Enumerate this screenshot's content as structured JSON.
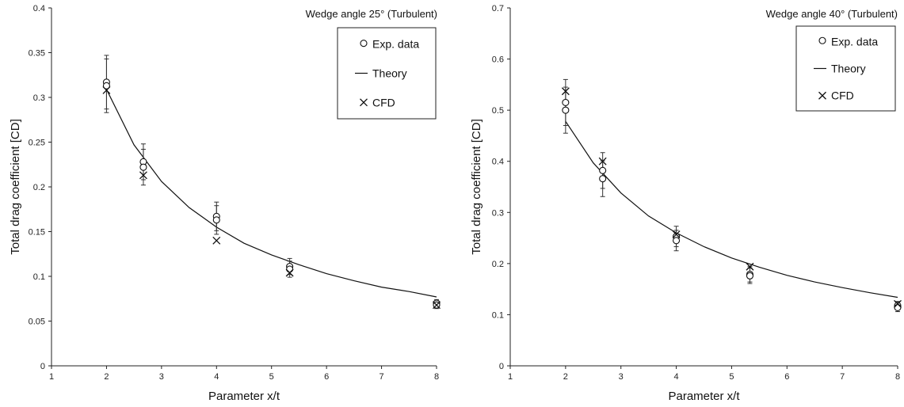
{
  "chart_data": [
    {
      "type": "scatter",
      "annotation": "Wedge angle 25° (Turbulent)",
      "xlabel": "Parameter x/t",
      "ylabel": "Total drag coefficient [CD]",
      "xlim": [
        1,
        8
      ],
      "ylim": [
        0,
        0.4
      ],
      "xticks": [
        "1",
        "2",
        "3",
        "4",
        "5",
        "6",
        "7",
        "8"
      ],
      "yticks": [
        "0",
        "0.05",
        "0.1",
        "0.15",
        "0.2",
        "0.25",
        "0.3",
        "0.35",
        "0.4"
      ],
      "legend": [
        "Exp. data",
        "Theory",
        "CFD"
      ],
      "legend_position": "top-right",
      "grid": false,
      "series": [
        {
          "name": "Exp. data",
          "marker": "circle",
          "points": [
            {
              "x": 2,
              "y": 0.317,
              "err": 0.03
            },
            {
              "x": 2,
              "y": 0.313,
              "err": 0.03
            },
            {
              "x": 2.67,
              "y": 0.228,
              "err": 0.02
            },
            {
              "x": 2.67,
              "y": 0.222,
              "err": 0.02
            },
            {
              "x": 4,
              "y": 0.167,
              "err": 0.016
            },
            {
              "x": 4,
              "y": 0.163,
              "err": 0.016
            },
            {
              "x": 5.33,
              "y": 0.111,
              "err": 0.009
            },
            {
              "x": 5.33,
              "y": 0.108,
              "err": 0.009
            },
            {
              "x": 8,
              "y": 0.07,
              "err": 0.004
            },
            {
              "x": 8,
              "y": 0.068,
              "err": 0.004
            }
          ]
        },
        {
          "name": "Theory",
          "type": "line",
          "x": [
            2,
            2.5,
            3,
            3.5,
            4,
            4.5,
            5,
            5.5,
            6,
            6.5,
            7,
            7.5,
            8
          ],
          "values": [
            0.309,
            0.247,
            0.206,
            0.177,
            0.155,
            0.137,
            0.124,
            0.113,
            0.103,
            0.095,
            0.088,
            0.083,
            0.077
          ]
        },
        {
          "name": "CFD",
          "marker": "x",
          "points": [
            {
              "x": 2,
              "y": 0.308
            },
            {
              "x": 2.67,
              "y": 0.213
            },
            {
              "x": 4,
              "y": 0.14
            },
            {
              "x": 5.33,
              "y": 0.104
            },
            {
              "x": 8,
              "y": 0.068
            }
          ]
        }
      ]
    },
    {
      "type": "scatter",
      "annotation": "Wedge angle 40° (Turbulent)",
      "xlabel": "Parameter x/t",
      "ylabel": "Total drag coefficient [CD]",
      "xlim": [
        1,
        8
      ],
      "ylim": [
        0,
        0.7
      ],
      "xticks": [
        "1",
        "2",
        "3",
        "4",
        "5",
        "6",
        "7",
        "8"
      ],
      "yticks": [
        "0",
        "0.1",
        "0.2",
        "0.3",
        "0.4",
        "0.5",
        "0.6",
        "0.7"
      ],
      "legend": [
        "Exp. data",
        "Theory",
        "CFD"
      ],
      "legend_position": "top-right",
      "grid": false,
      "series": [
        {
          "name": "Exp. data",
          "marker": "circle",
          "points": [
            {
              "x": 2,
              "y": 0.515,
              "err": 0.045
            },
            {
              "x": 2,
              "y": 0.5,
              "err": 0.045
            },
            {
              "x": 2.67,
              "y": 0.382,
              "err": 0.035
            },
            {
              "x": 2.67,
              "y": 0.366,
              "err": 0.035
            },
            {
              "x": 4,
              "y": 0.253,
              "err": 0.02
            },
            {
              "x": 4,
              "y": 0.245,
              "err": 0.02
            },
            {
              "x": 5.33,
              "y": 0.179,
              "err": 0.015
            },
            {
              "x": 5.33,
              "y": 0.176,
              "err": 0.015
            },
            {
              "x": 8,
              "y": 0.118,
              "err": 0.008
            },
            {
              "x": 8,
              "y": 0.114,
              "err": 0.008
            }
          ]
        },
        {
          "name": "Theory",
          "type": "line",
          "x": [
            2,
            2.5,
            3,
            3.5,
            4,
            4.5,
            5,
            5.5,
            6,
            6.5,
            7,
            7.5,
            8
          ],
          "values": [
            0.478,
            0.397,
            0.338,
            0.293,
            0.26,
            0.233,
            0.211,
            0.193,
            0.177,
            0.164,
            0.153,
            0.143,
            0.134
          ]
        },
        {
          "name": "CFD",
          "marker": "x",
          "points": [
            {
              "x": 2,
              "y": 0.537
            },
            {
              "x": 2.67,
              "y": 0.4
            },
            {
              "x": 4,
              "y": 0.257
            },
            {
              "x": 5.33,
              "y": 0.194
            },
            {
              "x": 8,
              "y": 0.121
            }
          ]
        }
      ]
    }
  ]
}
